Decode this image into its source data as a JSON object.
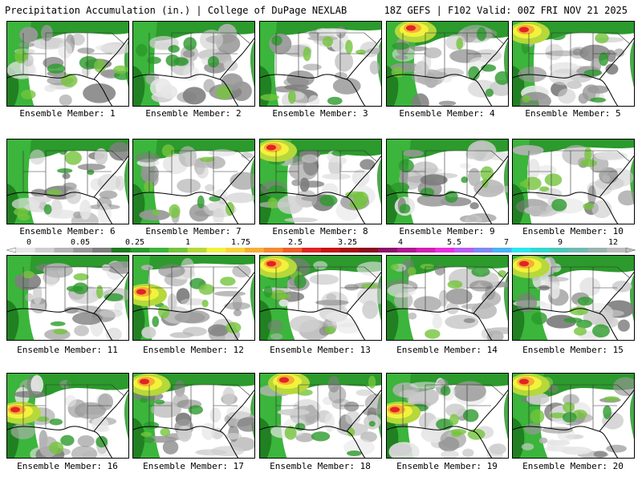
{
  "header": {
    "left": "Precipitation Accumulation (in.) | College of DuPage NEXLAB",
    "right": "18Z GEFS | F102 Valid: 00Z FRI NOV 21 2025"
  },
  "colorbar": {
    "labels": [
      "0",
      "0.05",
      "0.25",
      "1",
      "1.75",
      "2.5",
      "3.25",
      "4",
      "5.5",
      "7",
      "9",
      "12"
    ],
    "colors": [
      "#e6e6e6",
      "#cfcfcf",
      "#b4b4b4",
      "#989898",
      "#7e7e7e",
      "#1f7a1f",
      "#2c9a2c",
      "#3bb53b",
      "#74c43c",
      "#b6d83a",
      "#f2f23c",
      "#f7d43c",
      "#f7ae36",
      "#f48930",
      "#ee5f2a",
      "#e12424",
      "#c61414",
      "#a80f0f",
      "#8c0c1e",
      "#8c1268",
      "#b01890",
      "#d21fb2",
      "#e82ee0",
      "#b95cf0",
      "#7e88f5",
      "#4ab2f4",
      "#2ce6ee",
      "#33d8d2",
      "#4dc8b8",
      "#70bcb0",
      "#9ab4ae",
      "#bdbdbd"
    ]
  },
  "panels": [
    {
      "label": "Ensemble Member: 1",
      "wet": "moderate",
      "hot": null
    },
    {
      "label": "Ensemble Member: 2",
      "wet": "moderate",
      "hot": null
    },
    {
      "label": "Ensemble Member: 3",
      "wet": "light",
      "hot": null
    },
    {
      "label": "Ensemble Member: 4",
      "wet": "heavy",
      "hot": "north"
    },
    {
      "label": "Ensemble Member: 5",
      "wet": "moderate",
      "hot": "northwest"
    },
    {
      "label": "Ensemble Member: 6",
      "wet": "moderate",
      "hot": null
    },
    {
      "label": "Ensemble Member: 7",
      "wet": "moderate",
      "hot": null
    },
    {
      "label": "Ensemble Member: 8",
      "wet": "heavy",
      "hot": "northwest"
    },
    {
      "label": "Ensemble Member: 9",
      "wet": "moderate",
      "hot": null
    },
    {
      "label": "Ensemble Member: 10",
      "wet": "light",
      "hot": null
    },
    {
      "label": "Ensemble Member: 11",
      "wet": "moderate",
      "hot": null
    },
    {
      "label": "Ensemble Member: 12",
      "wet": "light",
      "hot": "west"
    },
    {
      "label": "Ensemble Member: 13",
      "wet": "heavy",
      "hot": "northwest"
    },
    {
      "label": "Ensemble Member: 14",
      "wet": "moderate",
      "hot": null
    },
    {
      "label": "Ensemble Member: 15",
      "wet": "heavy",
      "hot": "northwest"
    },
    {
      "label": "Ensemble Member: 16",
      "wet": "heavy",
      "hot": "west"
    },
    {
      "label": "Ensemble Member: 17",
      "wet": "moderate",
      "hot": "northwest"
    },
    {
      "label": "Ensemble Member: 18",
      "wet": "moderate",
      "hot": "north"
    },
    {
      "label": "Ensemble Member: 19",
      "wet": "moderate",
      "hot": "west"
    },
    {
      "label": "Ensemble Member: 20",
      "wet": "heavy",
      "hot": "northwest"
    }
  ]
}
